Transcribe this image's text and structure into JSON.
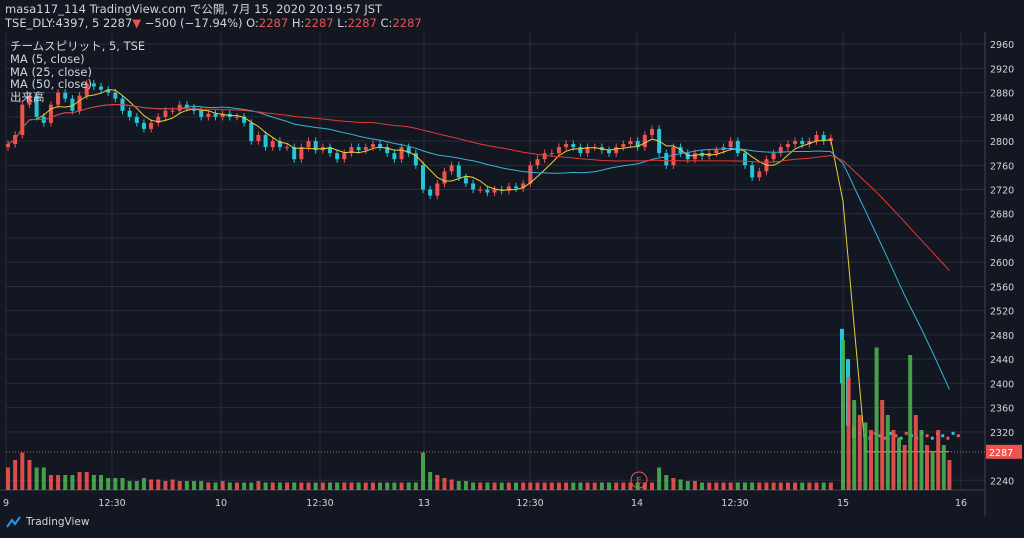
{
  "header": {
    "line1": "masa117_114 TradingView.com で公開, 7月 15, 2020 20:19:57 JST",
    "symbol": "TSE_DLY:4397, 5",
    "last": "2287",
    "change": "−500 (−17.94%)",
    "o_label": "O:",
    "o": "2287",
    "h_label": "H:",
    "h": "2287",
    "l_label": "L:",
    "l": "2287",
    "c_label": "C:",
    "c": "2287"
  },
  "legend": {
    "title": "チームスピリット, 5, TSE",
    "ma5": "MA (5, close)",
    "ma25": "MA (25, close)",
    "ma50": "MA (50, close)",
    "volume": "出来高"
  },
  "footer": {
    "brand": "TradingView"
  },
  "colors": {
    "up": "#ef5350",
    "down": "#26c6da",
    "ma5": "#e8d03a",
    "ma25": "#36b4d8",
    "ma50": "#e53935",
    "vol_up": "#ef5350",
    "vol_down": "#4caf50",
    "price_tag": "#ef5350",
    "earnings": "#ef5350"
  },
  "chart_data": {
    "type": "candlestick",
    "y_ticks": [
      2960,
      2920,
      2880,
      2840,
      2800,
      2760,
      2720,
      2680,
      2640,
      2600,
      2560,
      2520,
      2480,
      2440,
      2400,
      2360,
      2320,
      2240
    ],
    "ylim": [
      2224,
      2980
    ],
    "x_ticks": [
      "9",
      "12:30",
      "10",
      "12:30",
      "13",
      "12:30",
      "14",
      "12:30",
      "15",
      "16"
    ],
    "current_price": "2287",
    "earnings_marker": "E",
    "close": [
      2795,
      2810,
      2860,
      2875,
      2840,
      2830,
      2860,
      2880,
      2870,
      2850,
      2875,
      2895,
      2890,
      2885,
      2880,
      2870,
      2850,
      2840,
      2830,
      2820,
      2830,
      2840,
      2850,
      2850,
      2860,
      2855,
      2850,
      2840,
      2845,
      2840,
      2845,
      2840,
      2840,
      2830,
      2800,
      2810,
      2790,
      2800,
      2790,
      2790,
      2770,
      2790,
      2800,
      2785,
      2790,
      2780,
      2770,
      2780,
      2790,
      2785,
      2790,
      2795,
      2790,
      2780,
      2770,
      2790,
      2780,
      2760,
      2720,
      2710,
      2730,
      2750,
      2760,
      2740,
      2730,
      2720,
      2720,
      2715,
      2720,
      2718,
      2725,
      2722,
      2730,
      2760,
      2770,
      2780,
      2780,
      2790,
      2795,
      2790,
      2780,
      2790,
      2790,
      2785,
      2780,
      2790,
      2795,
      2800,
      2790,
      2810,
      2820,
      2780,
      2760,
      2790,
      2780,
      2770,
      2780,
      2775,
      2780,
      2785,
      2790,
      2800,
      2780,
      2760,
      2740,
      2750,
      2770,
      2780,
      2790,
      2795,
      2800,
      2795,
      2800,
      2810,
      2800,
      2805,
      2287,
      2287,
      2287,
      2287,
      2287,
      2287,
      2287,
      2287,
      2287,
      2287,
      2287,
      2287,
      2287,
      2287,
      2287,
      2287,
      2287,
      2287,
      2287,
      2287
    ],
    "volume_relative": [
      0.15,
      0.2,
      0.25,
      0.2,
      0.15,
      0.15,
      0.1,
      0.1,
      0.1,
      0.1,
      0.12,
      0.12,
      0.1,
      0.1,
      0.08,
      0.08,
      0.08,
      0.06,
      0.06,
      0.08,
      0.07,
      0.07,
      0.06,
      0.07,
      0.06,
      0.06,
      0.06,
      0.06,
      0.05,
      0.05,
      0.06,
      0.05,
      0.05,
      0.05,
      0.05,
      0.06,
      0.05,
      0.05,
      0.05,
      0.05,
      0.05,
      0.05,
      0.05,
      0.05,
      0.05,
      0.05,
      0.05,
      0.05,
      0.05,
      0.05,
      0.05,
      0.05,
      0.05,
      0.05,
      0.05,
      0.05,
      0.05,
      0.05,
      0.25,
      0.12,
      0.1,
      0.08,
      0.07,
      0.06,
      0.06,
      0.05,
      0.05,
      0.05,
      0.05,
      0.05,
      0.05,
      0.05,
      0.05,
      0.05,
      0.05,
      0.05,
      0.05,
      0.05,
      0.05,
      0.05,
      0.05,
      0.05,
      0.05,
      0.05,
      0.05,
      0.05,
      0.05,
      0.05,
      0.05,
      0.05,
      0.05,
      0.15,
      0.1,
      0.08,
      0.07,
      0.06,
      0.06,
      0.05,
      0.05,
      0.05,
      0.05,
      0.05,
      0.05,
      0.05,
      0.05,
      0.05,
      0.05,
      0.05,
      0.05,
      0.05,
      0.05,
      0.05,
      0.05,
      0.05,
      0.05,
      0.05,
      1.0,
      0.75,
      0.6,
      0.5,
      0.45,
      0.4,
      0.95,
      0.6,
      0.5,
      0.4,
      0.35,
      0.3,
      0.9,
      0.5,
      0.4,
      0.3,
      0.25,
      0.4,
      0.3,
      0.2
    ]
  }
}
